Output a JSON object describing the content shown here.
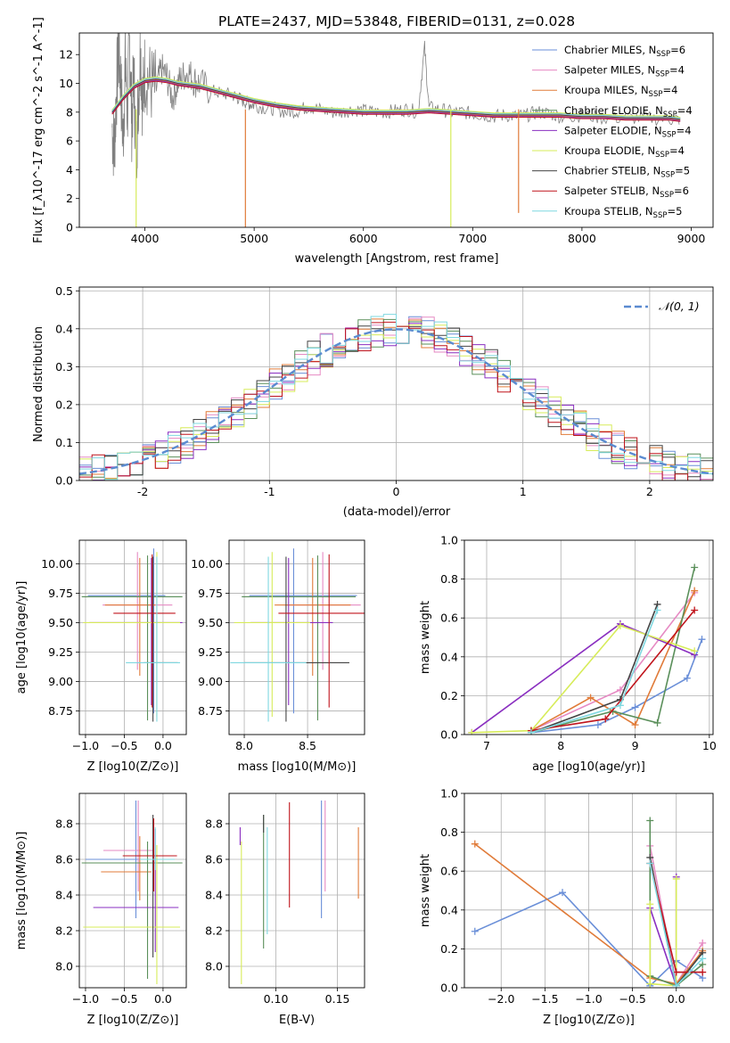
{
  "figure": {
    "title": "PLATE=2437, MJD=53848, FIBERID=0131, z=0.028"
  },
  "models": [
    {
      "name": "Chabrier MILES",
      "nssp": "6",
      "color": "#6a8fd8"
    },
    {
      "name": "Salpeter MILES",
      "nssp": "4",
      "color": "#e68ac3"
    },
    {
      "name": "Kroupa MILES",
      "nssp": "4",
      "color": "#e07b39"
    },
    {
      "name": "Chabrier ELODIE",
      "nssp": "4",
      "color": "#5a8f5a"
    },
    {
      "name": "Salpeter ELODIE",
      "nssp": "4",
      "color": "#8a2fc0"
    },
    {
      "name": "Kroupa ELODIE",
      "nssp": "4",
      "color": "#d7ec5a"
    },
    {
      "name": "Chabrier STELIB",
      "nssp": "5",
      "color": "#444444"
    },
    {
      "name": "Salpeter STELIB",
      "nssp": "6",
      "color": "#c0141c"
    },
    {
      "name": "Kroupa STELIB",
      "nssp": "5",
      "color": "#7fd8e0"
    }
  ],
  "chart_data": [
    {
      "id": "spectrum",
      "type": "line",
      "xlabel": "wavelength [Angstrom, rest frame]",
      "ylabel": "Flux [f_λ10^-17 erg cm^-2 s^-1 A^-1]",
      "xlim": [
        3400,
        9200
      ],
      "ylim": [
        0,
        13.5
      ],
      "xticks": [
        4000,
        5000,
        6000,
        7000,
        8000,
        9000
      ],
      "yticks": [
        0,
        2,
        4,
        6,
        8,
        10,
        12
      ],
      "data_color": "#808080",
      "data_x": [
        3700,
        3720,
        3740,
        3760,
        3780,
        3800,
        3820,
        3840,
        3860,
        3880,
        3900,
        3920,
        3940,
        3960,
        3980,
        4000,
        4050,
        4100,
        4150,
        4200,
        4250,
        4300,
        4350,
        4400,
        4450,
        4500,
        4600,
        4700,
        4800,
        4850,
        4900,
        4950,
        5000,
        5100,
        5200,
        5300,
        5400,
        5500,
        5600,
        5700,
        5800,
        5900,
        6000,
        6100,
        6200,
        6300,
        6400,
        6500,
        6560,
        6600,
        6700,
        6800,
        6900,
        7000,
        7100,
        7200,
        7300,
        7400,
        7500,
        7600,
        7700,
        7800,
        7900,
        8000,
        8200,
        8400,
        8600,
        8800,
        8900
      ],
      "data_y": [
        7.0,
        5.5,
        9.5,
        12.5,
        10.0,
        6.0,
        11.5,
        8.0,
        13.0,
        7.5,
        10.5,
        5.0,
        9.0,
        12.5,
        8.5,
        11.0,
        10.0,
        9.5,
        11.0,
        10.5,
        9.0,
        10.0,
        10.5,
        10.8,
        10.2,
        10.0,
        9.5,
        9.3,
        9.2,
        9.0,
        8.8,
        8.6,
        8.5,
        8.3,
        8.2,
        8.0,
        8.1,
        8.4,
        8.2,
        8.0,
        8.0,
        8.2,
        8.1,
        8.0,
        8.0,
        8.1,
        8.2,
        8.0,
        12.5,
        8.3,
        8.2,
        8.0,
        8.0,
        7.9,
        7.8,
        7.7,
        7.8,
        7.7,
        7.8,
        8.0,
        7.9,
        7.7,
        7.7,
        7.8,
        7.6,
        7.6,
        7.6,
        7.5,
        7.5
      ],
      "model_x": [
        3700,
        3800,
        3900,
        4000,
        4100,
        4200,
        4300,
        4400,
        4500,
        4600,
        4700,
        4800,
        4900,
        5000,
        5200,
        5400,
        5600,
        5800,
        6000,
        6200,
        6400,
        6600,
        6800,
        7000,
        7200,
        7400,
        7600,
        7800,
        8000,
        8200,
        8400,
        8600,
        8800,
        8900
      ],
      "model_y": [
        8.0,
        9.0,
        9.8,
        10.2,
        10.3,
        10.2,
        10.0,
        9.9,
        9.8,
        9.6,
        9.4,
        9.2,
        9.0,
        8.8,
        8.5,
        8.3,
        8.2,
        8.1,
        8.0,
        8.0,
        8.0,
        8.1,
        8.0,
        7.9,
        7.8,
        7.8,
        7.8,
        7.8,
        7.7,
        7.7,
        7.6,
        7.6,
        7.6,
        7.5
      ],
      "model_offsets": [
        0.0,
        0.05,
        -0.05,
        0.1,
        -0.1,
        0.15,
        0.0,
        -0.15,
        0.08
      ],
      "dips": [
        {
          "x": 3920,
          "model": 5,
          "y": 0
        },
        {
          "x": 4920,
          "model": 2,
          "y": 0
        },
        {
          "x": 6800,
          "model": 5,
          "y": 0
        },
        {
          "x": 7420,
          "model": 2,
          "y": 1.0
        }
      ]
    },
    {
      "id": "residuals",
      "type": "line",
      "xlabel": "(data-model)/error",
      "ylabel": "Normed distribution",
      "xlim": [
        -2.5,
        2.5
      ],
      "ylim": [
        0,
        0.51
      ],
      "xticks": [
        -2,
        -1,
        0,
        1,
        2
      ],
      "yticks": [
        0.0,
        0.1,
        0.2,
        0.3,
        0.4,
        0.5
      ],
      "legend": "𝒩(0, 1)",
      "gaussian_color": "#5b8bd0"
    },
    {
      "id": "age-vs-Z",
      "type": "scatter",
      "xlabel": "Z [log10(Z/Z⊙)]",
      "ylabel": "age  [log10(age/yr)]",
      "xlim": [
        -1.08,
        0.3
      ],
      "ylim": [
        8.55,
        10.2
      ],
      "xticks": [
        -1.0,
        -0.5,
        0.0
      ],
      "yticks": [
        8.75,
        9.0,
        9.25,
        9.5,
        9.75,
        10.0
      ],
      "points": [
        {
          "x": -0.12,
          "y": 9.73,
          "xerr": [
            0.85,
            0.15
          ],
          "yerr": [
            1.0,
            0.4
          ]
        },
        {
          "x": -0.33,
          "y": 9.65,
          "xerr": [
            0.45,
            0.45
          ],
          "yerr": [
            0.55,
            0.45
          ]
        },
        {
          "x": -0.3,
          "y": 9.65,
          "xerr": [
            0.45,
            0.2
          ],
          "yerr": [
            0.6,
            0.4
          ]
        },
        {
          "x": -0.2,
          "y": 9.72,
          "xerr": [
            0.85,
            0.45
          ],
          "yerr": [
            1.05,
            0.35
          ]
        },
        {
          "x": -0.15,
          "y": 9.5,
          "xerr": [
            0.8,
            0.4
          ],
          "yerr": [
            0.7,
            0.55
          ]
        },
        {
          "x": -0.08,
          "y": 9.5,
          "xerr": [
            0.95,
            0.3
          ],
          "yerr": [
            0.8,
            0.6
          ]
        },
        {
          "x": -0.13,
          "y": 9.16,
          "xerr": [
            0.12,
            0.32
          ],
          "yerr": [
            0.5,
            0.9
          ]
        },
        {
          "x": -0.14,
          "y": 9.58,
          "xerr": [
            0.5,
            0.3
          ],
          "yerr": [
            0.8,
            0.5
          ]
        },
        {
          "x": -0.08,
          "y": 9.16,
          "xerr": [
            0.4,
            0.3
          ],
          "yerr": [
            0.5,
            0.9
          ]
        }
      ]
    },
    {
      "id": "age-vs-mass",
      "type": "scatter",
      "xlabel": "mass [log10(M/M⊙)]",
      "ylabel": "",
      "xlim": [
        7.88,
        8.95
      ],
      "ylim": [
        8.55,
        10.2
      ],
      "xticks": [
        8.0,
        8.5
      ],
      "yticks": [
        8.75,
        9.0,
        9.25,
        9.5,
        9.75,
        10.0
      ],
      "points": [
        {
          "x": 8.39,
          "y": 9.73,
          "xerr": [
            0.35,
            0.5
          ],
          "yerr": [
            1.0,
            0.4
          ]
        },
        {
          "x": 8.62,
          "y": 9.65,
          "xerr": [
            0.3,
            0.3
          ],
          "yerr": [
            0.55,
            0.45
          ]
        },
        {
          "x": 8.54,
          "y": 9.65,
          "xerr": [
            0.3,
            0.3
          ],
          "yerr": [
            0.6,
            0.4
          ]
        },
        {
          "x": 8.58,
          "y": 9.72,
          "xerr": [
            0.6,
            0.3
          ],
          "yerr": [
            1.05,
            0.35
          ]
        },
        {
          "x": 8.35,
          "y": 9.5,
          "xerr": [
            0.3,
            0.35
          ],
          "yerr": [
            0.7,
            0.55
          ]
        },
        {
          "x": 8.22,
          "y": 9.5,
          "xerr": [
            0.3,
            0.3
          ],
          "yerr": [
            0.8,
            0.6
          ]
        },
        {
          "x": 8.33,
          "y": 9.16,
          "xerr": [
            0.33,
            0.5
          ],
          "yerr": [
            0.5,
            0.9
          ]
        },
        {
          "x": 8.67,
          "y": 9.58,
          "xerr": [
            0.4,
            0.3
          ],
          "yerr": [
            0.8,
            0.5
          ]
        },
        {
          "x": 8.19,
          "y": 9.16,
          "xerr": [
            0.3,
            0.3
          ],
          "yerr": [
            0.5,
            0.9
          ]
        }
      ]
    },
    {
      "id": "weight-vs-age",
      "type": "line",
      "xlabel": "age  [log10(age/yr)]",
      "ylabel": "mass weight",
      "xlim": [
        6.7,
        10.05
      ],
      "ylim": [
        0,
        1.0
      ],
      "xticks": [
        7,
        8,
        9,
        10
      ],
      "yticks": [
        0.0,
        0.2,
        0.4,
        0.6,
        0.8,
        1.0
      ],
      "series": [
        {
          "model": 0,
          "x": [
            7.6,
            8.5,
            9.0,
            9.7,
            9.9
          ],
          "y": [
            0.01,
            0.05,
            0.14,
            0.29,
            0.49
          ]
        },
        {
          "model": 1,
          "x": [
            7.6,
            8.8,
            9.8
          ],
          "y": [
            0.02,
            0.23,
            0.73
          ]
        },
        {
          "model": 2,
          "x": [
            7.6,
            8.4,
            9.0,
            9.8
          ],
          "y": [
            0.02,
            0.19,
            0.05,
            0.74
          ]
        },
        {
          "model": 3,
          "x": [
            7.6,
            8.7,
            9.3,
            9.8
          ],
          "y": [
            0.01,
            0.12,
            0.06,
            0.86
          ]
        },
        {
          "model": 4,
          "x": [
            6.8,
            8.8,
            9.8
          ],
          "y": [
            0.01,
            0.57,
            0.41
          ]
        },
        {
          "model": 5,
          "x": [
            6.8,
            7.6,
            8.8,
            9.8
          ],
          "y": [
            0.01,
            0.02,
            0.56,
            0.43
          ]
        },
        {
          "model": 6,
          "x": [
            7.6,
            8.8,
            9.3
          ],
          "y": [
            0.01,
            0.18,
            0.67
          ]
        },
        {
          "model": 7,
          "x": [
            7.6,
            8.6,
            9.8
          ],
          "y": [
            0.02,
            0.08,
            0.64
          ]
        },
        {
          "model": 8,
          "x": [
            7.6,
            8.8,
            9.3
          ],
          "y": [
            0.01,
            0.15,
            0.64
          ]
        }
      ]
    },
    {
      "id": "mass-vs-Z",
      "type": "scatter",
      "xlabel": "Z [log10(Z/Z⊙)]",
      "ylabel": "mass [log10(M/M⊙)]",
      "xlim": [
        -1.08,
        0.3
      ],
      "ylim": [
        7.88,
        8.97
      ],
      "xticks": [
        -1.0,
        -0.5,
        0.0
      ],
      "yticks": [
        8.0,
        8.2,
        8.4,
        8.6,
        8.8
      ],
      "points": [
        {
          "x": -0.35,
          "y": 8.6,
          "xerr": [
            0.65,
            0.3
          ],
          "yerr": [
            0.33,
            0.33
          ]
        },
        {
          "x": -0.32,
          "y": 8.65,
          "xerr": [
            0.45,
            0.2
          ],
          "yerr": [
            0.23,
            0.28
          ]
        },
        {
          "x": -0.3,
          "y": 8.53,
          "xerr": [
            0.5,
            0.15
          ],
          "yerr": [
            0.16,
            0.2
          ]
        },
        {
          "x": -0.2,
          "y": 8.58,
          "xerr": [
            0.85,
            0.45
          ],
          "yerr": [
            0.65,
            0.12
          ]
        },
        {
          "x": -0.1,
          "y": 8.33,
          "xerr": [
            0.8,
            0.3
          ],
          "yerr": [
            0.25,
            0.44
          ]
        },
        {
          "x": -0.08,
          "y": 8.22,
          "xerr": [
            0.95,
            0.3
          ],
          "yerr": [
            0.32,
            0.46
          ]
        },
        {
          "x": -0.13,
          "y": 8.5,
          "xerr": [
            0.0,
            0.0
          ],
          "yerr": [
            0.45,
            0.35
          ]
        },
        {
          "x": -0.12,
          "y": 8.62,
          "xerr": [
            0.4,
            0.3
          ],
          "yerr": [
            0.2,
            0.21
          ]
        },
        {
          "x": -0.1,
          "y": 8.6,
          "xerr": [
            0.2,
            0.25
          ],
          "yerr": [
            0.06,
            0.18
          ]
        }
      ]
    },
    {
      "id": "mass-vs-EBV",
      "type": "scatter",
      "xlabel": "E(B-V)",
      "ylabel": "",
      "xlim": [
        0.062,
        0.172
      ],
      "ylim": [
        7.88,
        8.97
      ],
      "xticks": [
        0.1,
        0.15
      ],
      "yticks": [
        8.0,
        8.2,
        8.4,
        8.6,
        8.8
      ],
      "points": [
        {
          "x": 0.137,
          "y": 8.6,
          "yerr": [
            0.33,
            0.33
          ]
        },
        {
          "x": 0.14,
          "y": 8.65,
          "yerr": [
            0.23,
            0.28
          ]
        },
        {
          "x": 0.167,
          "y": 8.58,
          "yerr": [
            0.2,
            0.2
          ]
        },
        {
          "x": 0.09,
          "y": 8.5,
          "yerr": [
            0.4,
            0.35
          ]
        },
        {
          "x": 0.071,
          "y": 8.72,
          "yerr": [
            0.04,
            0.06
          ]
        },
        {
          "x": 0.072,
          "y": 8.3,
          "yerr": [
            0.4,
            0.4
          ]
        },
        {
          "x": 0.09,
          "y": 8.75,
          "yerr": [
            0.0,
            0.1
          ]
        },
        {
          "x": 0.111,
          "y": 8.62,
          "yerr": [
            0.29,
            0.3
          ]
        },
        {
          "x": 0.093,
          "y": 8.48,
          "yerr": [
            0.3,
            0.3
          ]
        }
      ]
    },
    {
      "id": "weight-vs-Z",
      "type": "line",
      "xlabel": "Z [log10(Z/Z⊙)]",
      "ylabel": "mass weight",
      "xlim": [
        -2.42,
        0.42
      ],
      "ylim": [
        0,
        1.0
      ],
      "xticks": [
        -2.0,
        -1.5,
        -1.0,
        -0.5,
        0.0
      ],
      "yticks": [
        0.0,
        0.2,
        0.4,
        0.6,
        0.8,
        1.0
      ],
      "series": [
        {
          "model": 0,
          "x": [
            -2.3,
            -1.3,
            -0.3,
            0.0,
            0.3
          ],
          "y": [
            0.29,
            0.49,
            0.01,
            0.14,
            0.05
          ]
        },
        {
          "model": 1,
          "x": [
            -0.3,
            0.0,
            0.3
          ],
          "y": [
            0.73,
            0.02,
            0.23
          ]
        },
        {
          "model": 2,
          "x": [
            -2.3,
            -0.3,
            0.0,
            0.3
          ],
          "y": [
            0.74,
            0.05,
            0.02,
            0.19
          ]
        },
        {
          "model": 3,
          "x": [
            -0.3,
            -0.3,
            0.0,
            0.3
          ],
          "y": [
            0.86,
            0.06,
            0.01,
            0.12
          ]
        },
        {
          "model": 4,
          "x": [
            -0.3,
            0.0,
            0.0
          ],
          "y": [
            0.41,
            0.01,
            0.57
          ]
        },
        {
          "model": 5,
          "x": [
            -0.3,
            -0.3,
            0.0,
            0.0
          ],
          "y": [
            0.43,
            0.02,
            0.01,
            0.56
          ]
        },
        {
          "model": 6,
          "x": [
            -0.3,
            0.0,
            0.3
          ],
          "y": [
            0.67,
            0.01,
            0.18
          ]
        },
        {
          "model": 7,
          "x": [
            -0.3,
            0.0,
            0.3
          ],
          "y": [
            0.64,
            0.08,
            0.08
          ]
        },
        {
          "model": 8,
          "x": [
            -0.3,
            0.0,
            0.3
          ],
          "y": [
            0.64,
            0.01,
            0.15
          ]
        }
      ]
    }
  ]
}
